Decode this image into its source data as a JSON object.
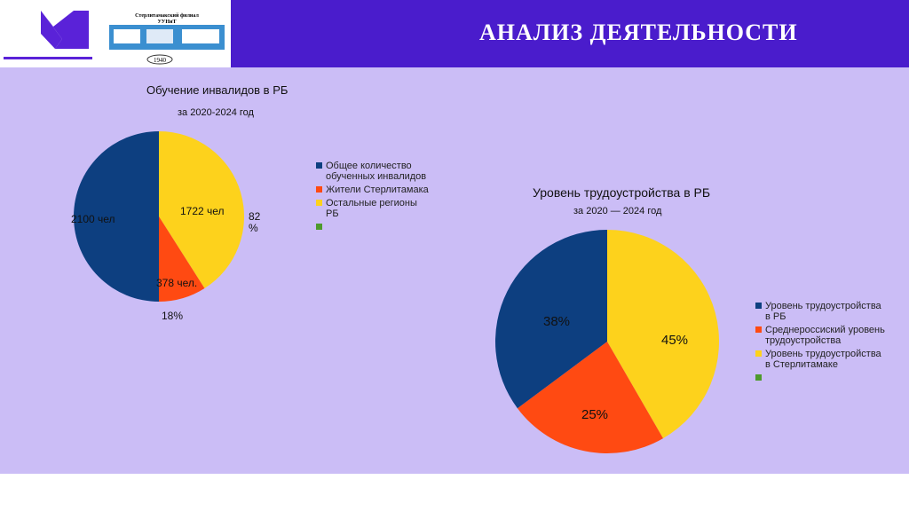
{
  "header": {
    "title": "АНАЛИЗ ДЕЯТЕЛЬНОСТИ",
    "logo_text": [
      "Стерлитамакский филиал",
      "УУНиТ",
      "1940"
    ]
  },
  "colors": {
    "blue": "#0d3f80",
    "orange": "#ff4a12",
    "yellow": "#fdd21c",
    "green": "#4e9a2c"
  },
  "chart_data": [
    {
      "type": "pie",
      "title": "Обучение инвалидов в РБ",
      "subtitle": "за 2020-2024 год",
      "slices": [
        {
          "name": "Остальные регионы РБ",
          "value": 1722,
          "label": "1722 чел",
          "color": "#fdd21c"
        },
        {
          "name": "Жители Стерлитамака",
          "value": 378,
          "label": "378 чел.",
          "color": "#ff4a12"
        },
        {
          "name": "Общее количество обученных инвалидов",
          "value": 2100,
          "label": "2100 чел",
          "color": "#0d3f80"
        }
      ],
      "extra_labels": [
        "82 %",
        "18%"
      ],
      "legend": [
        "Общее количество обученных инвалидов",
        "Жители Стерлитамака",
        "Остальные регионы РБ",
        ""
      ],
      "legend_position": "right"
    },
    {
      "type": "pie",
      "title": "Уровень трудоустройства в РБ",
      "subtitle": "за 2020 — 2024 год",
      "slices": [
        {
          "name": "Уровень трудоустройства в Стерлитамаке",
          "value": 45,
          "label": "45%",
          "color": "#fdd21c"
        },
        {
          "name": "Среднероссиский уровень трудоустройства",
          "value": 25,
          "label": "25%",
          "color": "#ff4a12"
        },
        {
          "name": "Уровень трудоустройства в РБ",
          "value": 38,
          "label": "38%",
          "color": "#0d3f80"
        }
      ],
      "legend": [
        "Уровень трудоустройства в РБ",
        "Среднероссиский уровень трудоустройства",
        "Уровень трудоустройства в Стерлитамаке",
        ""
      ],
      "legend_position": "right"
    }
  ]
}
